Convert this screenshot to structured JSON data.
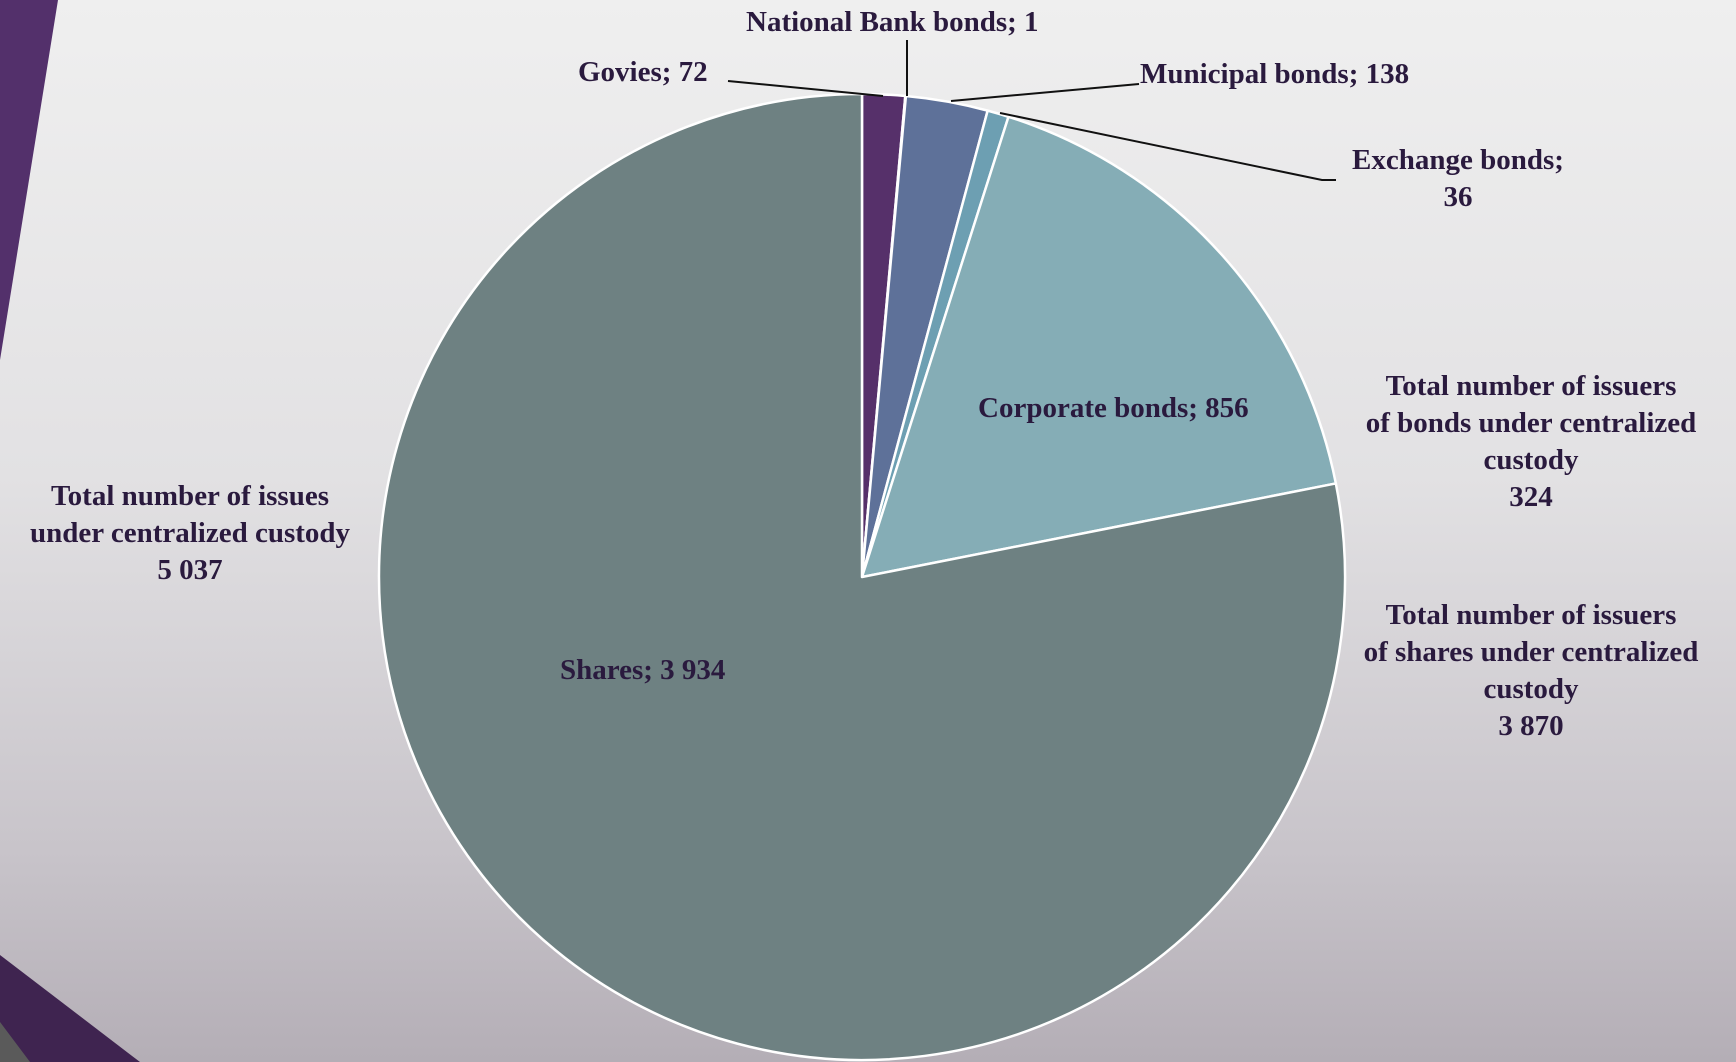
{
  "chart_data": {
    "type": "pie",
    "title": "",
    "slices": [
      {
        "label": "Govies",
        "value": 72,
        "color": "#56306a"
      },
      {
        "label": "National Bank bonds",
        "value": 1,
        "color": "#6f4a8a"
      },
      {
        "label": "Municipal bonds",
        "value": 138,
        "color": "#5e7199"
      },
      {
        "label": "Exchange bonds",
        "value": 36,
        "color": "#6d9fb2"
      },
      {
        "label": "Corporate bonds",
        "value": 856,
        "color": "#85adb6"
      },
      {
        "label": "Shares",
        "value": 3934,
        "color": "#6e8182"
      }
    ],
    "data_labels": {
      "govies": "Govies; 72",
      "national_bank": "National Bank bonds; 1",
      "municipal": "Municipal bonds; 138",
      "exchange": [
        "Exchange bonds;",
        "36"
      ],
      "corporate": "Corporate bonds; 856",
      "shares": "Shares; 3 934"
    },
    "annotations": {
      "total_issues": [
        "Total number of issues",
        "under centralized custody",
        "5 037"
      ],
      "issuers_bonds": [
        "Total number of issuers",
        "of bonds under centralized",
        "custody",
        "324"
      ],
      "issuers_shares": [
        "Total number of issuers",
        "of shares under centralized",
        "custody",
        "3 870"
      ]
    },
    "legend": "none"
  },
  "colors": {
    "label_text": "#2a1a3e",
    "leader_line": "#111111",
    "slice_border": "#ffffff",
    "accent_purple": "#4f2d68"
  }
}
